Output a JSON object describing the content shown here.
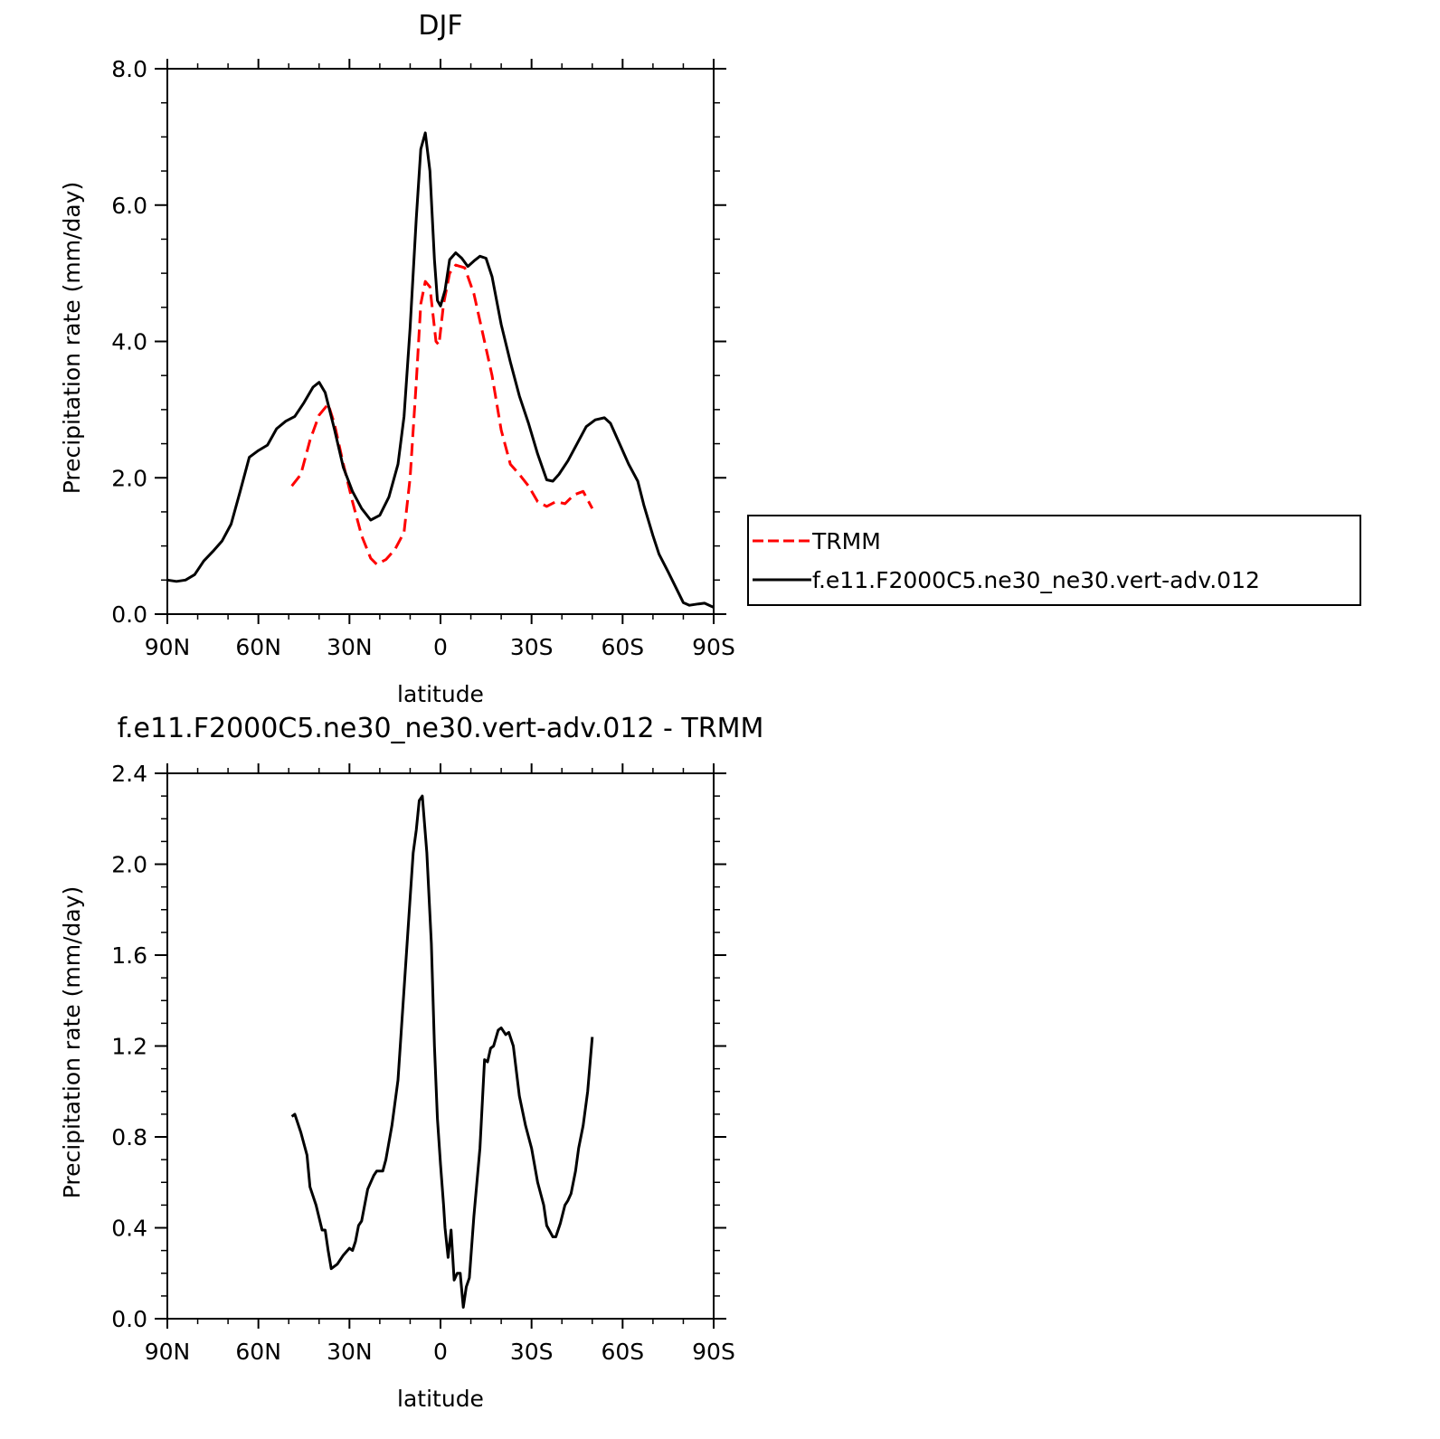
{
  "chart_data": [
    {
      "type": "line",
      "title": "DJF",
      "xlabel": "latitude",
      "ylabel": "Precipitation rate (mm/day)",
      "xlim": [
        90,
        -90
      ],
      "ylim": [
        0,
        8
      ],
      "x_ticks": [
        {
          "value": 90,
          "label": "90N"
        },
        {
          "value": 60,
          "label": "60N"
        },
        {
          "value": 30,
          "label": "30N"
        },
        {
          "value": 0,
          "label": "0"
        },
        {
          "value": -30,
          "label": "30S"
        },
        {
          "value": -60,
          "label": "60S"
        },
        {
          "value": -90,
          "label": "90S"
        }
      ],
      "y_ticks": [
        {
          "value": 0,
          "label": "0.0"
        },
        {
          "value": 2,
          "label": "2.0"
        },
        {
          "value": 4,
          "label": "4.0"
        },
        {
          "value": 6,
          "label": "6.0"
        },
        {
          "value": 8,
          "label": "8.0"
        }
      ],
      "grid": false,
      "legend_position": "right",
      "series": [
        {
          "name": "TRMM",
          "color": "#ff0000",
          "dash": "dashed",
          "points": [
            [
              49,
              1.88
            ],
            [
              46,
              2.05
            ],
            [
              43,
              2.55
            ],
            [
              40,
              2.92
            ],
            [
              37,
              3.08
            ],
            [
              35,
              2.8
            ],
            [
              32,
              2.2
            ],
            [
              29,
              1.65
            ],
            [
              26,
              1.15
            ],
            [
              23,
              0.82
            ],
            [
              21,
              0.73
            ],
            [
              18,
              0.8
            ],
            [
              15,
              0.95
            ],
            [
              12,
              1.2
            ],
            [
              10,
              2.0
            ],
            [
              8,
              3.4
            ],
            [
              6.5,
              4.55
            ],
            [
              5,
              4.88
            ],
            [
              3.5,
              4.8
            ],
            [
              1.5,
              4.0
            ],
            [
              0.5,
              3.95
            ],
            [
              -1,
              4.55
            ],
            [
              -3,
              5.0
            ],
            [
              -5,
              5.12
            ],
            [
              -8,
              5.08
            ],
            [
              -11,
              4.7
            ],
            [
              -14,
              4.1
            ],
            [
              -17,
              3.5
            ],
            [
              -20,
              2.7
            ],
            [
              -23,
              2.2
            ],
            [
              -26,
              2.05
            ],
            [
              -29,
              1.88
            ],
            [
              -32,
              1.65
            ],
            [
              -35,
              1.58
            ],
            [
              -38,
              1.65
            ],
            [
              -41,
              1.62
            ],
            [
              -44,
              1.75
            ],
            [
              -47,
              1.8
            ],
            [
              -50,
              1.55
            ]
          ]
        },
        {
          "name": "f.e11.F2000C5.ne30_ne30.vert-adv.012",
          "color": "#000000",
          "dash": "solid",
          "points": [
            [
              90,
              0.5
            ],
            [
              87,
              0.48
            ],
            [
              84,
              0.5
            ],
            [
              81,
              0.58
            ],
            [
              78,
              0.78
            ],
            [
              75,
              0.92
            ],
            [
              72,
              1.07
            ],
            [
              69,
              1.32
            ],
            [
              66,
              1.8
            ],
            [
              63,
              2.3
            ],
            [
              60,
              2.4
            ],
            [
              57,
              2.48
            ],
            [
              54,
              2.72
            ],
            [
              51,
              2.83
            ],
            [
              48,
              2.9
            ],
            [
              45,
              3.1
            ],
            [
              42,
              3.33
            ],
            [
              40,
              3.4
            ],
            [
              38,
              3.25
            ],
            [
              35,
              2.72
            ],
            [
              32,
              2.15
            ],
            [
              29,
              1.8
            ],
            [
              26,
              1.55
            ],
            [
              23,
              1.38
            ],
            [
              20,
              1.45
            ],
            [
              17,
              1.72
            ],
            [
              14,
              2.2
            ],
            [
              12,
              2.9
            ],
            [
              10,
              4.2
            ],
            [
              8,
              5.8
            ],
            [
              6.5,
              6.82
            ],
            [
              5,
              7.06
            ],
            [
              3.5,
              6.5
            ],
            [
              2,
              5.2
            ],
            [
              1,
              4.6
            ],
            [
              0,
              4.52
            ],
            [
              -1.5,
              4.75
            ],
            [
              -3,
              5.2
            ],
            [
              -5,
              5.3
            ],
            [
              -7,
              5.22
            ],
            [
              -9,
              5.1
            ],
            [
              -11,
              5.18
            ],
            [
              -13,
              5.25
            ],
            [
              -15,
              5.22
            ],
            [
              -17,
              4.95
            ],
            [
              -20,
              4.25
            ],
            [
              -23,
              3.7
            ],
            [
              -26,
              3.2
            ],
            [
              -29,
              2.8
            ],
            [
              -32,
              2.35
            ],
            [
              -35,
              1.97
            ],
            [
              -37,
              1.95
            ],
            [
              -39,
              2.05
            ],
            [
              -42,
              2.25
            ],
            [
              -45,
              2.5
            ],
            [
              -48,
              2.75
            ],
            [
              -51,
              2.85
            ],
            [
              -54,
              2.88
            ],
            [
              -56,
              2.8
            ],
            [
              -59,
              2.5
            ],
            [
              -62,
              2.2
            ],
            [
              -65,
              1.95
            ],
            [
              -67,
              1.6
            ],
            [
              -70,
              1.15
            ],
            [
              -72,
              0.88
            ],
            [
              -75,
              0.62
            ],
            [
              -78,
              0.35
            ],
            [
              -80,
              0.17
            ],
            [
              -82,
              0.13
            ],
            [
              -85,
              0.15
            ],
            [
              -87,
              0.16
            ],
            [
              -90,
              0.1
            ]
          ]
        }
      ]
    },
    {
      "type": "line",
      "title": "f.e11.F2000C5.ne30_ne30.vert-adv.012 - TRMM",
      "xlabel": "latitude",
      "ylabel": "Precipitation rate (mm/day)",
      "xlim": [
        90,
        -90
      ],
      "ylim": [
        0,
        2.4
      ],
      "x_ticks": [
        {
          "value": 90,
          "label": "90N"
        },
        {
          "value": 60,
          "label": "60N"
        },
        {
          "value": 30,
          "label": "30N"
        },
        {
          "value": 0,
          "label": "0"
        },
        {
          "value": -30,
          "label": "30S"
        },
        {
          "value": -60,
          "label": "60S"
        },
        {
          "value": -90,
          "label": "90S"
        }
      ],
      "y_ticks": [
        {
          "value": 0,
          "label": "0.0"
        },
        {
          "value": 0.4,
          "label": "0.4"
        },
        {
          "value": 0.8,
          "label": "0.8"
        },
        {
          "value": 1.2,
          "label": "1.2"
        },
        {
          "value": 1.6,
          "label": "1.6"
        },
        {
          "value": 2.0,
          "label": "2.0"
        },
        {
          "value": 2.4,
          "label": "2.4"
        }
      ],
      "grid": false,
      "series": [
        {
          "color": "#000000",
          "dash": "solid",
          "points": [
            [
              49,
              0.89
            ],
            [
              48,
              0.9
            ],
            [
              46,
              0.82
            ],
            [
              44,
              0.72
            ],
            [
              43,
              0.58
            ],
            [
              41,
              0.5
            ],
            [
              39,
              0.39
            ],
            [
              38,
              0.39
            ],
            [
              37,
              0.3
            ],
            [
              36,
              0.22
            ],
            [
              34,
              0.24
            ],
            [
              32,
              0.28
            ],
            [
              30,
              0.31
            ],
            [
              29,
              0.3
            ],
            [
              28,
              0.34
            ],
            [
              27,
              0.41
            ],
            [
              26,
              0.43
            ],
            [
              24,
              0.57
            ],
            [
              22,
              0.63
            ],
            [
              21,
              0.65
            ],
            [
              19,
              0.65
            ],
            [
              18,
              0.7
            ],
            [
              16,
              0.85
            ],
            [
              14,
              1.05
            ],
            [
              12,
              1.45
            ],
            [
              10,
              1.85
            ],
            [
              9,
              2.05
            ],
            [
              8,
              2.15
            ],
            [
              7,
              2.28
            ],
            [
              6,
              2.3
            ],
            [
              4.5,
              2.05
            ],
            [
              3,
              1.65
            ],
            [
              2,
              1.2
            ],
            [
              1,
              0.88
            ],
            [
              0,
              0.68
            ],
            [
              -1,
              0.5
            ],
            [
              -1.5,
              0.4
            ],
            [
              -2.5,
              0.27
            ],
            [
              -3.5,
              0.39
            ],
            [
              -4.5,
              0.17
            ],
            [
              -5.5,
              0.2
            ],
            [
              -6.5,
              0.2
            ],
            [
              -7.5,
              0.05
            ],
            [
              -8.5,
              0.14
            ],
            [
              -9.5,
              0.18
            ],
            [
              -11,
              0.45
            ],
            [
              -13,
              0.75
            ],
            [
              -14.5,
              1.14
            ],
            [
              -15.5,
              1.13
            ],
            [
              -16.5,
              1.19
            ],
            [
              -17.5,
              1.2
            ],
            [
              -19,
              1.27
            ],
            [
              -20,
              1.28
            ],
            [
              -21.5,
              1.25
            ],
            [
              -22.5,
              1.26
            ],
            [
              -24,
              1.2
            ],
            [
              -26,
              0.98
            ],
            [
              -28,
              0.85
            ],
            [
              -30,
              0.75
            ],
            [
              -32,
              0.6
            ],
            [
              -34,
              0.5
            ],
            [
              -35,
              0.41
            ],
            [
              -37,
              0.36
            ],
            [
              -38,
              0.36
            ],
            [
              -39.5,
              0.42
            ],
            [
              -41,
              0.5
            ],
            [
              -42,
              0.52
            ],
            [
              -43,
              0.55
            ],
            [
              -44.5,
              0.65
            ],
            [
              -45.5,
              0.75
            ],
            [
              -47,
              0.85
            ],
            [
              -48.5,
              1.0
            ],
            [
              -50,
              1.24
            ]
          ]
        }
      ]
    }
  ]
}
